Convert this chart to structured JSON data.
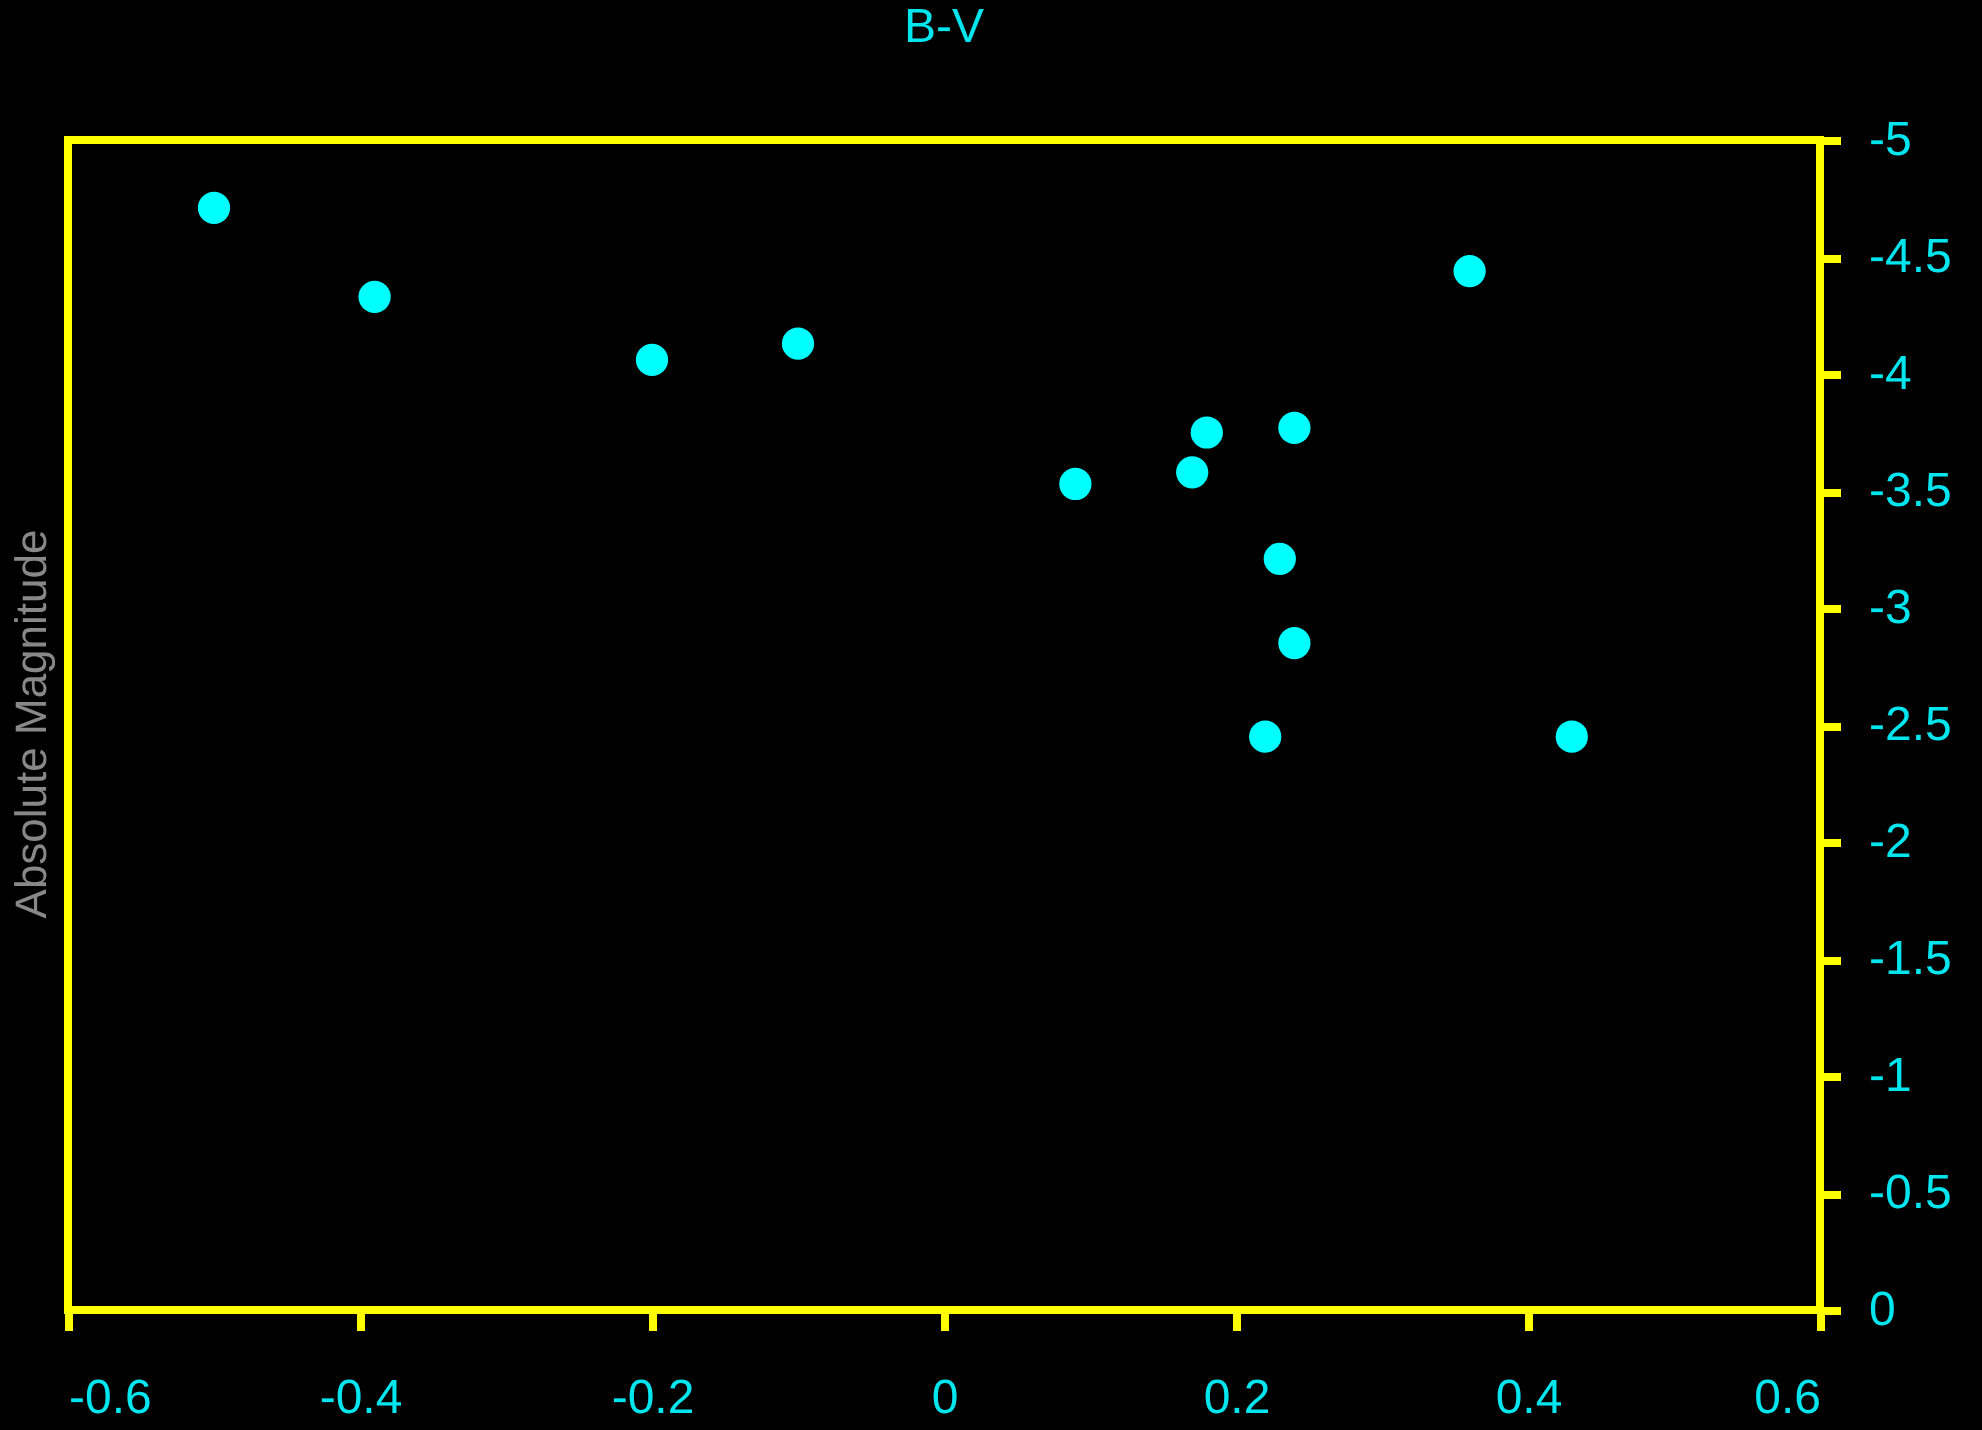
{
  "chart_data": {
    "type": "scatter",
    "title": "B-V",
    "ylabel": "Absolute Magnitude",
    "x": [
      -0.5,
      -0.39,
      -0.2,
      -0.1,
      0.09,
      0.17,
      0.18,
      0.24,
      0.23,
      0.24,
      0.22,
      0.43,
      0.36
    ],
    "series": [
      {
        "color": "#00ffff",
        "values": [
          -4.71,
          -4.33,
          -4.06,
          -4.13,
          -3.53,
          -3.58,
          -3.75,
          -3.77,
          -3.21,
          -2.85,
          -2.45,
          -2.45,
          -4.44
        ]
      }
    ],
    "xlim": [
      -0.6,
      0.6
    ],
    "xticks": [
      -0.6,
      -0.4,
      -0.2,
      0,
      0.2,
      0.4,
      0.6
    ],
    "ylim": [
      0,
      -5
    ],
    "yticks": [
      -5,
      -4.5,
      -4,
      -3.5,
      -3,
      -2.5,
      -2,
      -1.5,
      -1,
      -0.5,
      0
    ],
    "marker": "circle",
    "grid": false
  }
}
